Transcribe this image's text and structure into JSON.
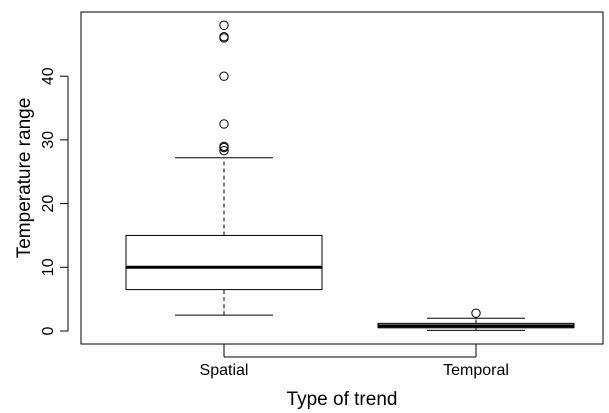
{
  "chart_data": {
    "type": "boxplot",
    "xlabel": "Type of trend",
    "ylabel": "Temperature range",
    "ylim": [
      -2,
      50
    ],
    "yticks": [
      0,
      10,
      20,
      30,
      40
    ],
    "categories": [
      "Spatial",
      "Temporal"
    ],
    "boxes": [
      {
        "name": "Spatial",
        "whisker_low": 2.5,
        "q1": 6.5,
        "median": 10,
        "q3": 15,
        "whisker_high": 27.2,
        "outliers": [
          28.3,
          28.8,
          29,
          32.5,
          40,
          46,
          46.2,
          48
        ]
      },
      {
        "name": "Temporal",
        "whisker_low": 0.1,
        "q1": 0.5,
        "median": 0.8,
        "q3": 1.2,
        "whisker_high": 2.0,
        "outliers": [
          2.8
        ]
      }
    ],
    "grid": false,
    "legend": "none",
    "colors": {
      "stroke": "#000000",
      "fill": "#ffffff"
    }
  }
}
